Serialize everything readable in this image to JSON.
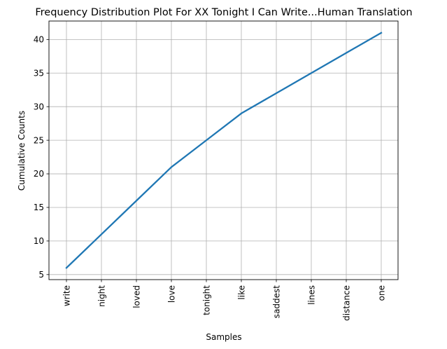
{
  "chart_data": {
    "type": "line",
    "title": "Frequency Distribution Plot For XX Tonight I Can Write...Human Translation",
    "xlabel": "Samples",
    "ylabel": "Cumulative Counts",
    "categories": [
      "write",
      "night",
      "loved",
      "love",
      "tonight",
      "like",
      "saddest",
      "lines",
      "distance",
      "one"
    ],
    "series": [
      {
        "values": [
          6,
          11,
          16,
          21,
          25,
          29,
          32,
          35,
          38,
          41
        ],
        "color": "#1f77b4"
      }
    ],
    "yticks": [
      5,
      10,
      15,
      20,
      25,
      30,
      35,
      40
    ],
    "ylim": [
      4.25,
      42.75
    ],
    "grid": true,
    "legend": "none"
  }
}
